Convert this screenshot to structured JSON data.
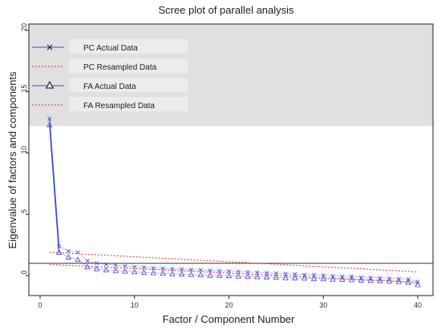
{
  "chart_data": {
    "type": "line",
    "title": "Scree plot of parallel analysis",
    "xlabel": "Factor / Component Number",
    "ylabel": "Eigenvalue of factors and components",
    "xlim": [
      0,
      40
    ],
    "ylim": [
      -1,
      20
    ],
    "x_ticks": [
      0,
      10,
      20,
      30,
      40
    ],
    "y_ticks": [
      0,
      5,
      10,
      15,
      20
    ],
    "reference_line": 1,
    "legend_position": "top-left",
    "series": [
      {
        "name": "PC Actual Data",
        "marker": "x",
        "style": "solid",
        "color": "#3b4ad6",
        "x": [
          1,
          2,
          3,
          4,
          5,
          6,
          7,
          8,
          9,
          10,
          11,
          12,
          13,
          14,
          15,
          16,
          17,
          18,
          19,
          20,
          21,
          22,
          23,
          24,
          25,
          26,
          27,
          28,
          29,
          30,
          31,
          32,
          33,
          34,
          35,
          36,
          37,
          38,
          39,
          40
        ],
        "values": [
          12.8,
          2.4,
          2.0,
          1.9,
          1.2,
          1.0,
          0.9,
          0.85,
          0.78,
          0.72,
          0.68,
          0.63,
          0.58,
          0.55,
          0.52,
          0.48,
          0.45,
          0.42,
          0.38,
          0.36,
          0.32,
          0.28,
          0.25,
          0.22,
          0.18,
          0.16,
          0.12,
          0.08,
          0.05,
          0.02,
          -0.02,
          -0.05,
          -0.08,
          -0.12,
          -0.15,
          -0.18,
          -0.22,
          -0.25,
          -0.3,
          -0.5
        ]
      },
      {
        "name": "PC Resampled Data",
        "marker": "none",
        "style": "dotted",
        "color": "#e83030",
        "x": [
          1,
          40
        ],
        "values": [
          1.9,
          0.3
        ]
      },
      {
        "name": "FA Actual Data",
        "marker": "triangle",
        "style": "solid",
        "color": "#3b4ad6",
        "x": [
          1,
          2,
          3,
          4,
          5,
          6,
          7,
          8,
          9,
          10,
          11,
          12,
          13,
          14,
          15,
          16,
          17,
          18,
          19,
          20,
          21,
          22,
          23,
          24,
          25,
          26,
          27,
          28,
          29,
          30,
          31,
          32,
          33,
          34,
          35,
          36,
          37,
          38,
          39,
          40
        ],
        "values": [
          12.3,
          1.9,
          1.5,
          1.3,
          0.7,
          0.55,
          0.45,
          0.4,
          0.35,
          0.3,
          0.26,
          0.22,
          0.18,
          0.15,
          0.12,
          0.08,
          0.05,
          0.02,
          0.0,
          -0.02,
          -0.05,
          -0.08,
          -0.1,
          -0.12,
          -0.15,
          -0.18,
          -0.2,
          -0.22,
          -0.25,
          -0.28,
          -0.3,
          -0.32,
          -0.35,
          -0.38,
          -0.4,
          -0.42,
          -0.45,
          -0.5,
          -0.55,
          -0.75
        ]
      },
      {
        "name": "FA Resampled Data",
        "marker": "none",
        "style": "dotted",
        "color": "#e83030",
        "x": [
          1,
          40
        ],
        "values": [
          0.9,
          -0.55
        ]
      }
    ],
    "colors": {
      "legend_background": "#e0e0e0",
      "legend_entry_background": "#ececec",
      "axis": "#222222"
    }
  }
}
